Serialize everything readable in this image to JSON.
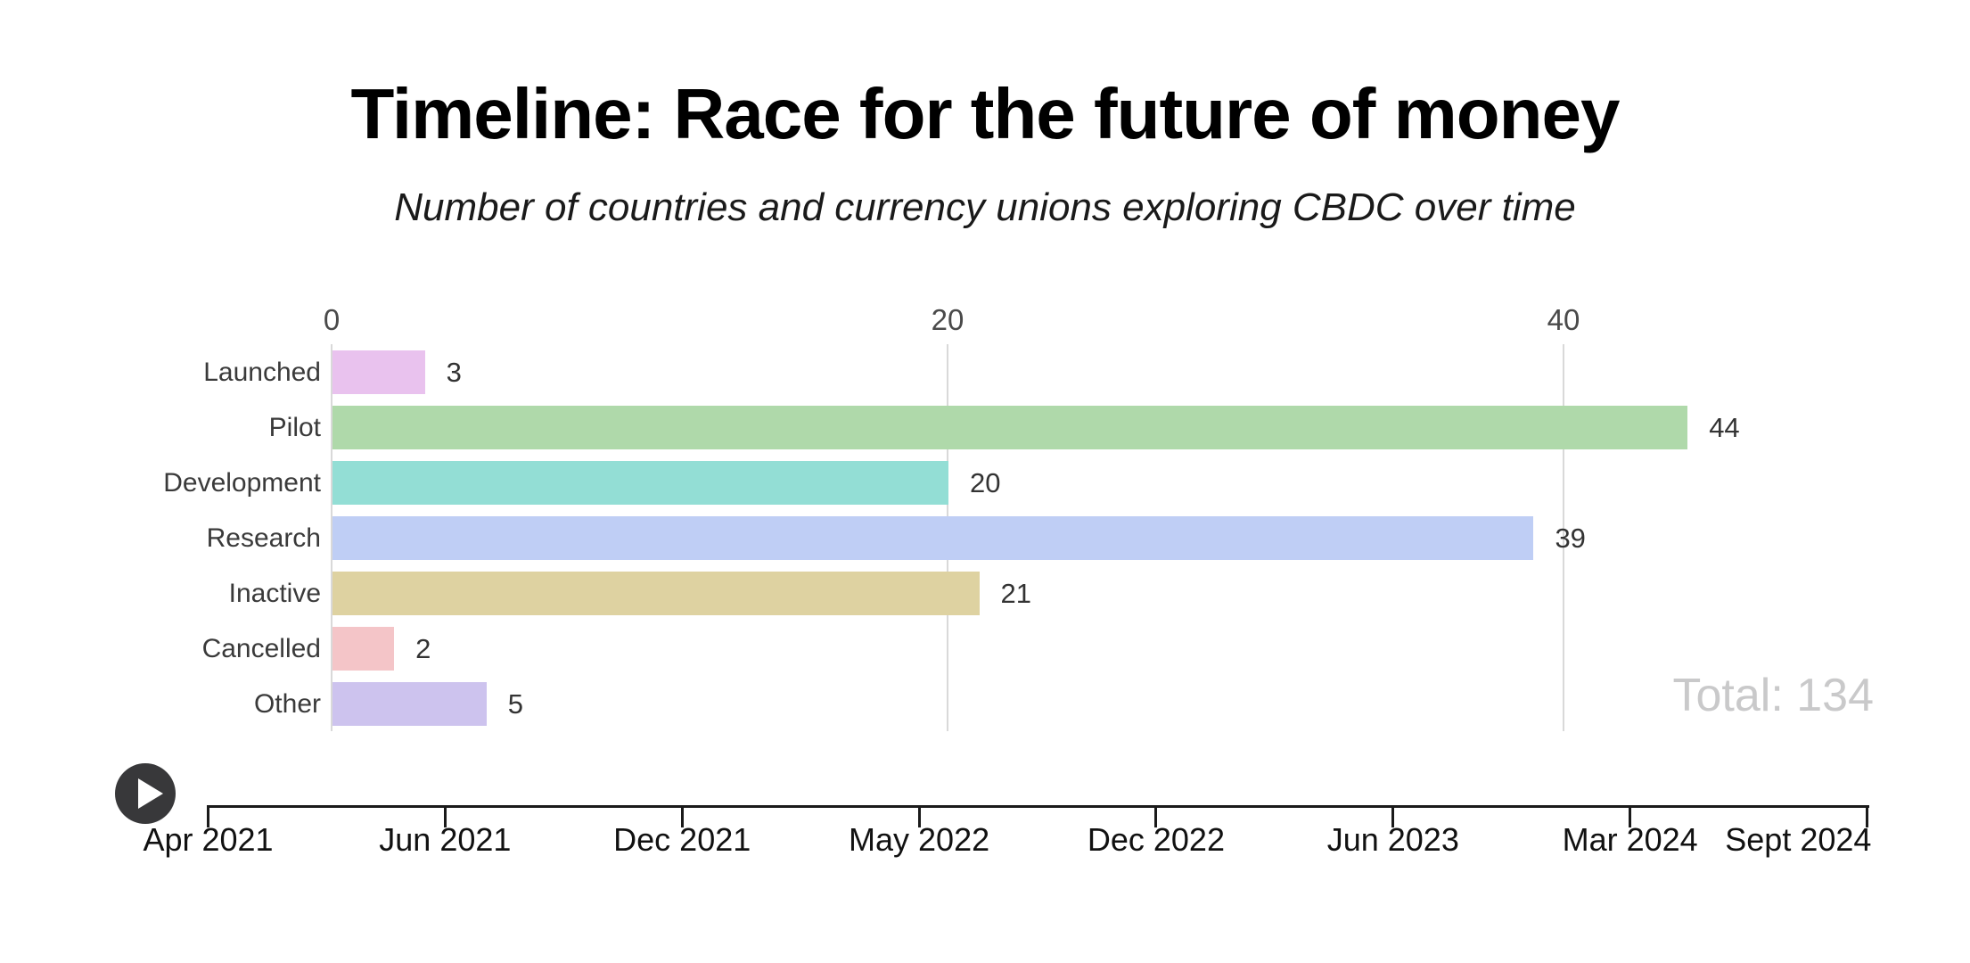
{
  "chart_data": {
    "type": "bar",
    "orientation": "horizontal",
    "title": "Timeline: Race for the future of money",
    "subtitle": "Number of countries and currency unions exploring CBDC over time",
    "categories": [
      "Launched",
      "Pilot",
      "Development",
      "Research",
      "Inactive",
      "Cancelled",
      "Other"
    ],
    "values": [
      3,
      44,
      20,
      39,
      21,
      2,
      5
    ],
    "colors": [
      "#e9c2ee",
      "#afd9aa",
      "#93ded5",
      "#bfcef5",
      "#ded2a1",
      "#f4c5c8",
      "#cdc3ee"
    ],
    "x_ticks": [
      0,
      20,
      40
    ],
    "xlim": [
      0,
      53
    ],
    "grid": true,
    "legend": "none",
    "total_text": "Total: 134",
    "total_value": 134
  },
  "timeline": {
    "dates": [
      "Apr 2021",
      "Jun 2021",
      "Dec 2021",
      "May 2022",
      "Dec 2022",
      "Jun 2023",
      "Mar 2024",
      "Sept 2024"
    ],
    "play_icon": "play-icon"
  },
  "colors": {
    "grid_line": "#d9d9d9",
    "axis_line": "#1a1a1a",
    "tick_label": "#4a4a4a",
    "category_label": "#3a3a3a",
    "value_label": "#333333",
    "date_label": "#111111",
    "total_text": "#c9c9ca",
    "play_button_bg": "#38383a",
    "play_triangle": "#ffffff"
  }
}
